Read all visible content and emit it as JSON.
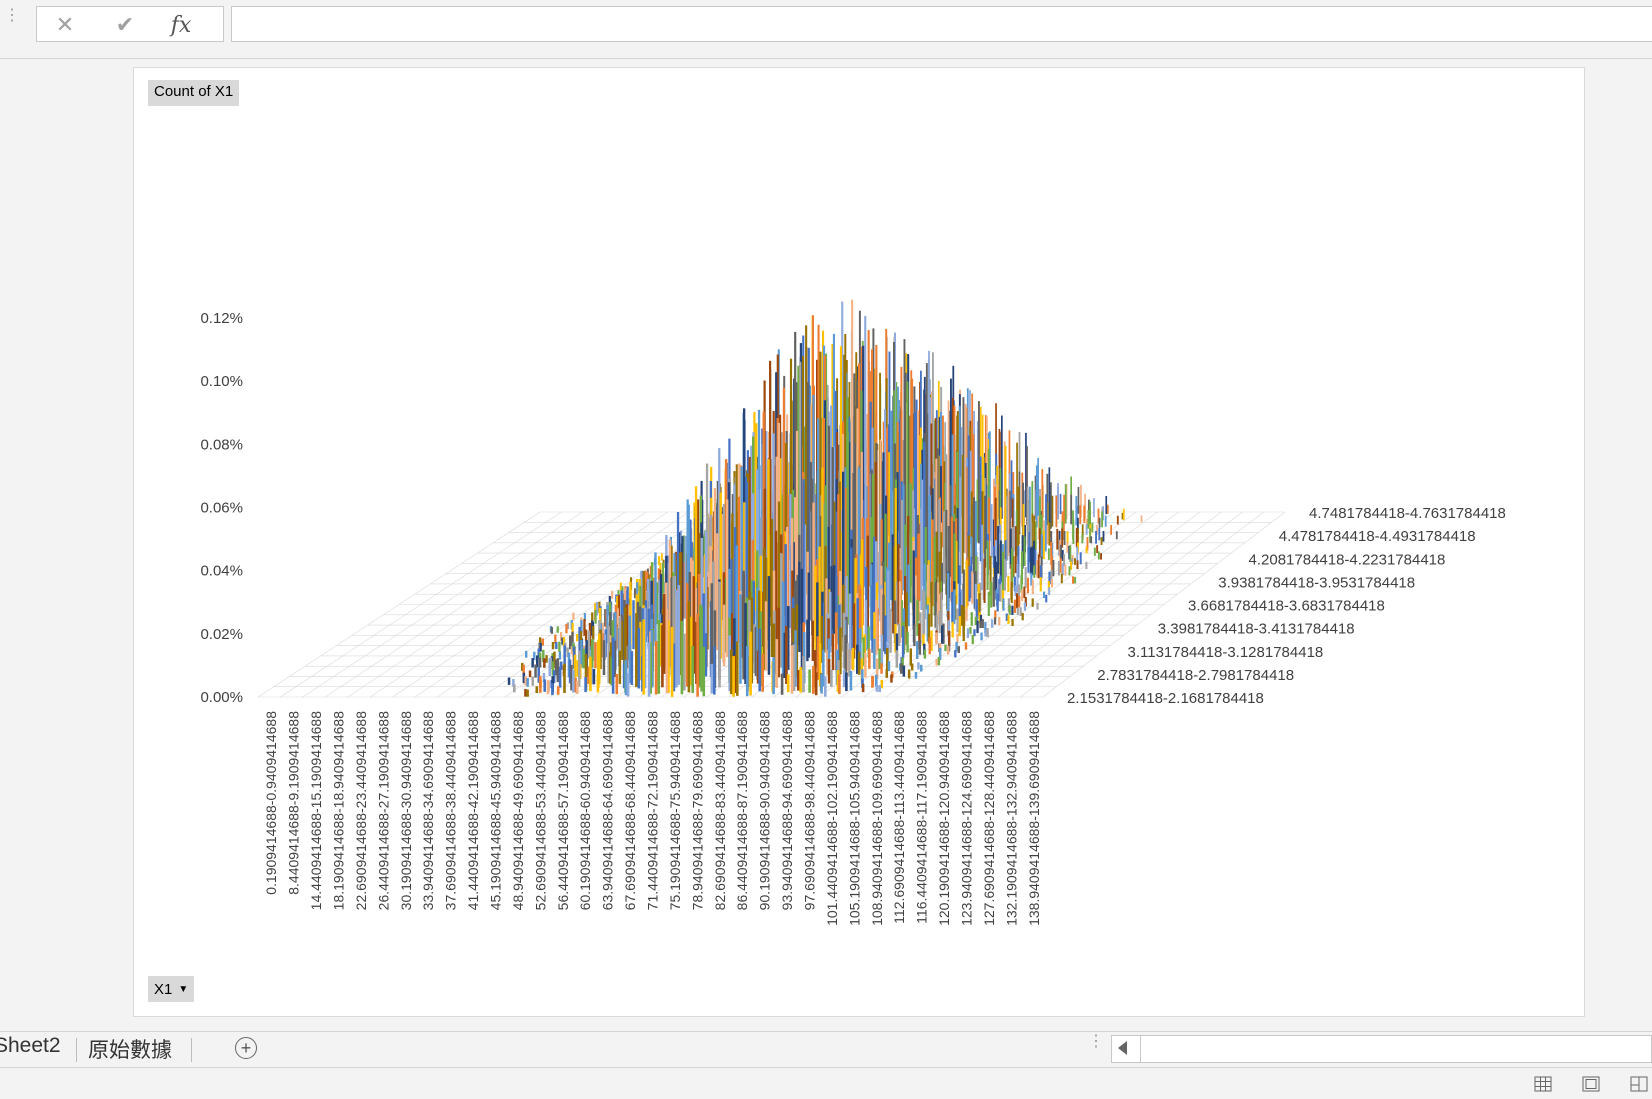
{
  "formula_bar": {
    "cancel_icon": "close-icon",
    "enter_icon": "check-icon",
    "function_label": "fx",
    "value": ""
  },
  "chart": {
    "field_buttons": {
      "values_field": "Count of X1",
      "axis_field": "X1"
    }
  },
  "chart_data": {
    "type": "bar",
    "subtype": "3d-column",
    "ylim": [
      0,
      0.0012
    ],
    "y_ticks": [
      "0.00%",
      "0.02%",
      "0.04%",
      "0.06%",
      "0.08%",
      "0.10%",
      "0.12%"
    ],
    "y_format": "percent",
    "x_categories": [
      "0.1909414688-0.9409414688",
      "8.4409414688-9.1909414688",
      "14.4409414688-15.1909414688",
      "18.1909414688-18.9409414688",
      "22.6909414688-23.4409414688",
      "26.4409414688-27.1909414688",
      "30.1909414688-30.9409414688",
      "33.9409414688-34.6909414688",
      "37.6909414688-38.4409414688",
      "41.4409414688-42.1909414688",
      "45.1909414688-45.9409414688",
      "48.9409414688-49.6909414688",
      "52.6909414688-53.4409414688",
      "56.4409414688-57.1909414688",
      "60.1909414688-60.9409414688",
      "63.9409414688-64.6909414688",
      "67.6909414688-68.4409414688",
      "71.4409414688-72.1909414688",
      "75.1909414688-75.9409414688",
      "78.9409414688-79.6909414688",
      "82.6909414688-83.4409414688",
      "86.4409414688-87.1909414688",
      "90.1909414688-90.9409414688",
      "93.9409414688-94.6909414688",
      "97.6909414688-98.4409414688",
      "101.4409414688-102.1909414688",
      "105.1909414688-105.9409414688",
      "108.9409414688-109.6909414688",
      "112.6909414688-113.4409414688",
      "116.4409414688-117.1909414688",
      "120.1909414688-120.9409414688",
      "123.9409414688-124.6909414688",
      "127.6909414688-128.4409414688",
      "132.1909414688-132.9409414688",
      "138.9409414688-139.6909414688"
    ],
    "depth_categories": [
      "2.1531784418-2.1681784418",
      "2.7831784418-2.7981784418",
      "3.1131784418-3.1281784418",
      "3.3981784418-3.4131784418",
      "3.6681784418-3.6831784418",
      "3.9381784418-3.9531784418",
      "4.2081784418-4.2231784418",
      "4.4781784418-4.4931784418",
      "4.7481784418-4.7631784418"
    ],
    "peak_value": 0.00085,
    "peak_position": "center",
    "series_colors": [
      "#4472c4",
      "#ed7d31",
      "#a5a5a5",
      "#ffc000",
      "#5b9bd5",
      "#70ad47",
      "#264478",
      "#9e480e",
      "#636363",
      "#997300",
      "#8faadc",
      "#f4b183"
    ]
  },
  "sheet_tabs": {
    "tabs": [
      "Sheet2",
      "原始數據"
    ],
    "add_label": "+"
  },
  "statusbar": {
    "views": [
      "normal-view-icon",
      "page-layout-view-icon",
      "page-break-view-icon"
    ]
  }
}
